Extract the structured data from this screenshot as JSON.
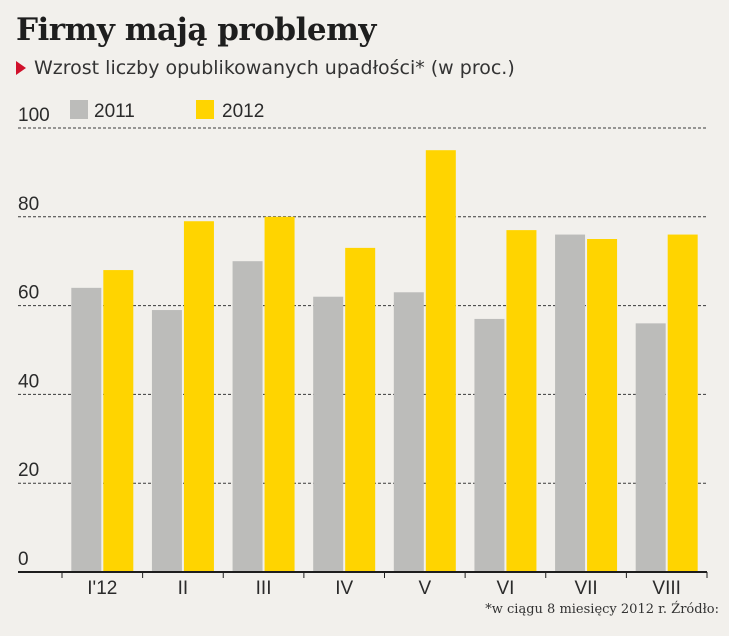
{
  "header": {
    "title": "Firmy mają problemy",
    "subtitle": "Wzrost liczby opublikowanych upadłości* (w proc.)"
  },
  "footnote": "*w ciągu 8 miesięcy 2012 r. Źródło:",
  "colors": {
    "s2011": "#bcbcba",
    "s2012": "#ffd400",
    "accent": "#d0112b"
  },
  "chart_data": {
    "type": "bar",
    "categories": [
      "I'12",
      "II",
      "III",
      "IV",
      "V",
      "VI",
      "VII",
      "VIII"
    ],
    "series": [
      {
        "name": "2011",
        "values": [
          64,
          59,
          70,
          62,
          63,
          57,
          76,
          56
        ]
      },
      {
        "name": "2012",
        "values": [
          68,
          79,
          80,
          73,
          95,
          77,
          75,
          76
        ]
      }
    ],
    "yticks": [
      0,
      20,
      40,
      60,
      80,
      100
    ],
    "ylim": [
      0,
      100
    ],
    "grid": true,
    "legend": "top-left"
  }
}
